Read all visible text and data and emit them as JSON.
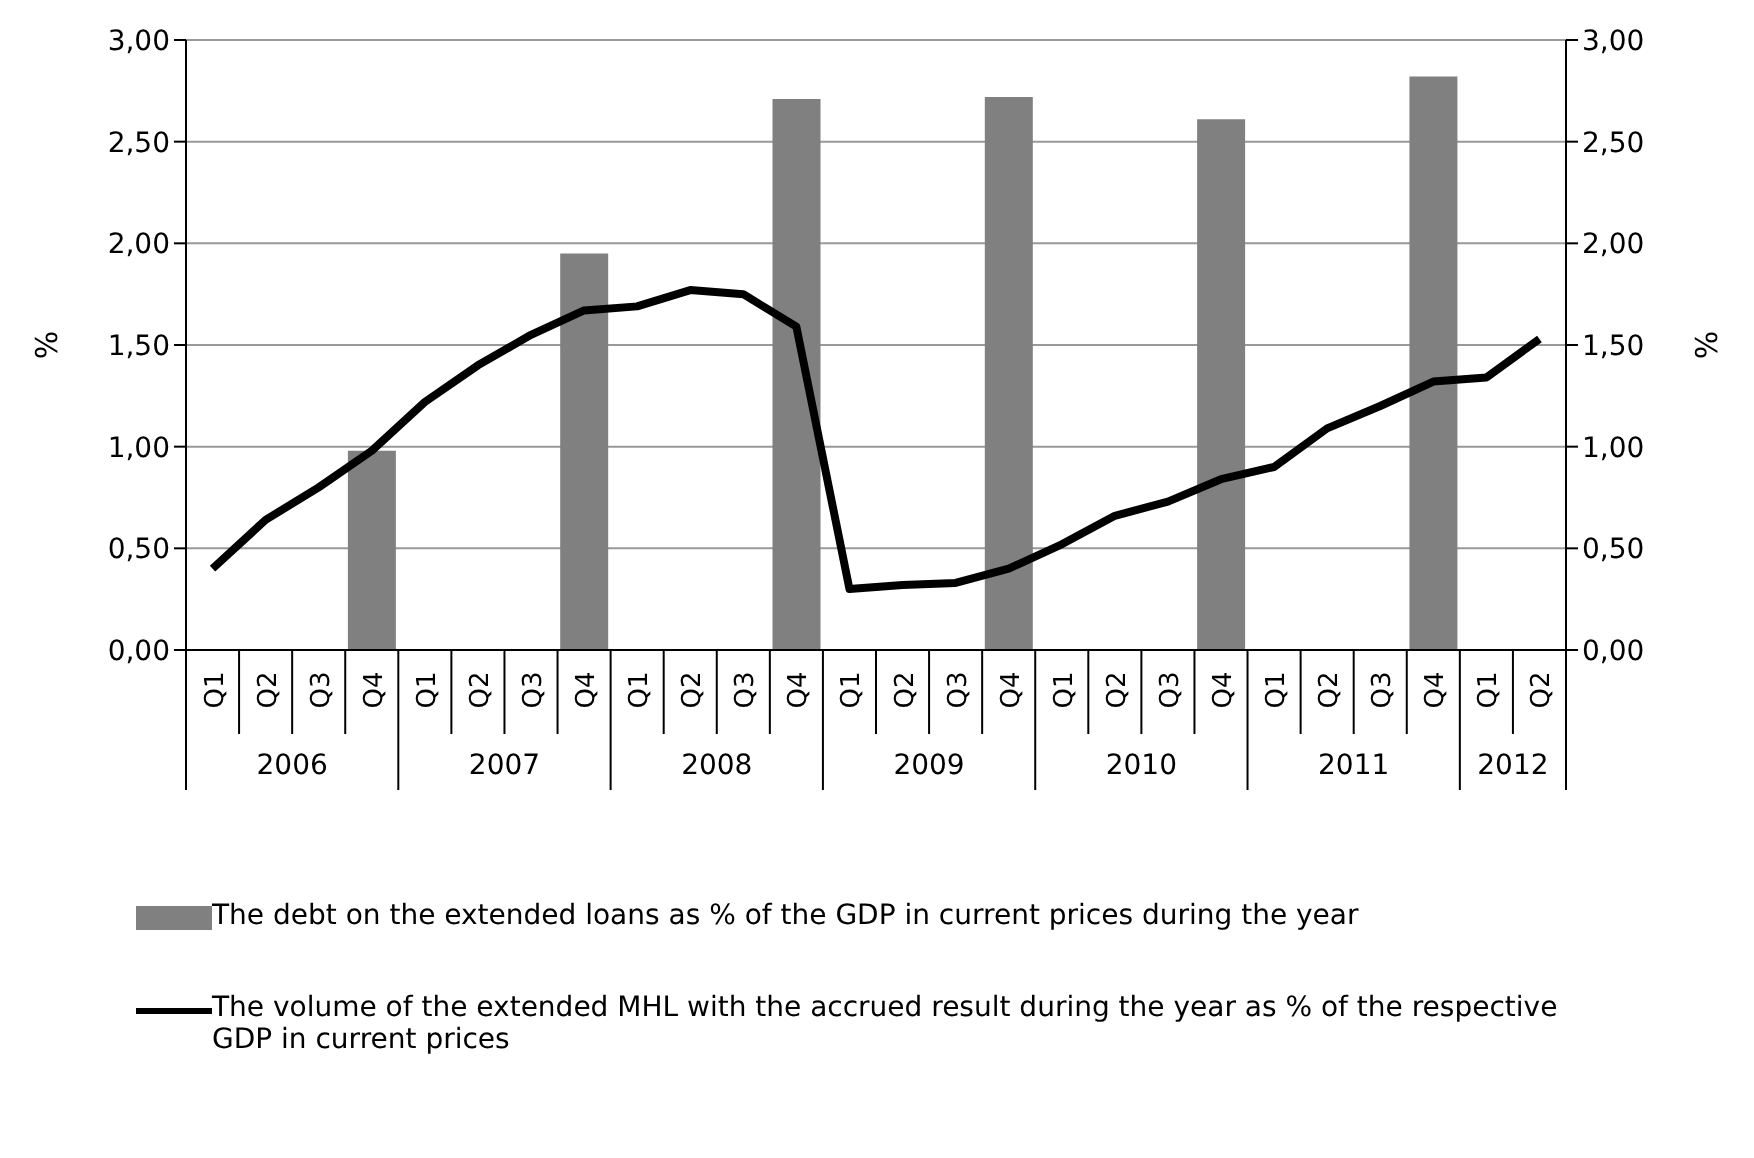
{
  "chart_data": {
    "type": "bar",
    "categories": [
      "Q1",
      "Q2",
      "Q3",
      "Q4",
      "Q1",
      "Q2",
      "Q3",
      "Q4",
      "Q1",
      "Q2",
      "Q3",
      "Q4",
      "Q1",
      "Q2",
      "Q3",
      "Q4",
      "Q1",
      "Q2",
      "Q3",
      "Q4",
      "Q1",
      "Q2",
      "Q3",
      "Q4",
      "Q1",
      "Q2"
    ],
    "series": [
      {
        "name": "The debt on the extended loans as % of the GDP in current prices during the year",
        "color": "#808080",
        "values": [
          null,
          null,
          null,
          0.98,
          null,
          null,
          null,
          1.95,
          null,
          null,
          null,
          2.71,
          null,
          null,
          null,
          2.72,
          null,
          null,
          null,
          2.61,
          null,
          null,
          null,
          2.82,
          null,
          null
        ]
      },
      {
        "name": "The volume of the extended MHL with the accrued result during the year as % of the respective GDP in current prices",
        "type": "line",
        "color": "#000000",
        "values": [
          0.4,
          0.64,
          0.8,
          0.98,
          1.22,
          1.4,
          1.55,
          1.67,
          1.69,
          1.77,
          1.75,
          1.59,
          0.3,
          0.32,
          0.33,
          0.4,
          0.52,
          0.66,
          0.73,
          0.84,
          0.9,
          1.09,
          1.2,
          1.32,
          1.34,
          1.53
        ]
      }
    ],
    "annotations": [
      "2006",
      "2007",
      "2008",
      "2009",
      "2010",
      "2011",
      "2012"
    ],
    "ylabel": "%",
    "y2label": "%",
    "ylim": [
      0,
      3
    ],
    "yticks": [
      {
        "value": 0,
        "label": "0,00"
      },
      {
        "value": 0.5,
        "label": "0,50"
      },
      {
        "value": 1,
        "label": "1,00"
      },
      {
        "value": 1.5,
        "label": "1,50"
      },
      {
        "value": 2,
        "label": "2,00"
      },
      {
        "value": 2.5,
        "label": "2,50"
      },
      {
        "value": 3,
        "label": "3,00"
      }
    ],
    "y2lim": [
      0,
      3
    ],
    "y2ticks": [
      {
        "value": 0,
        "label": "0,00"
      },
      {
        "value": 0.5,
        "label": "0,50"
      },
      {
        "value": 1,
        "label": "1,00"
      },
      {
        "value": 1.5,
        "label": "1,50"
      },
      {
        "value": 2,
        "label": "2,00"
      },
      {
        "value": 2.5,
        "label": "2,50"
      },
      {
        "value": 3,
        "label": "3,00"
      }
    ],
    "grid": "y",
    "legend": "bottom",
    "marker": "none",
    "line_style": "solid"
  }
}
